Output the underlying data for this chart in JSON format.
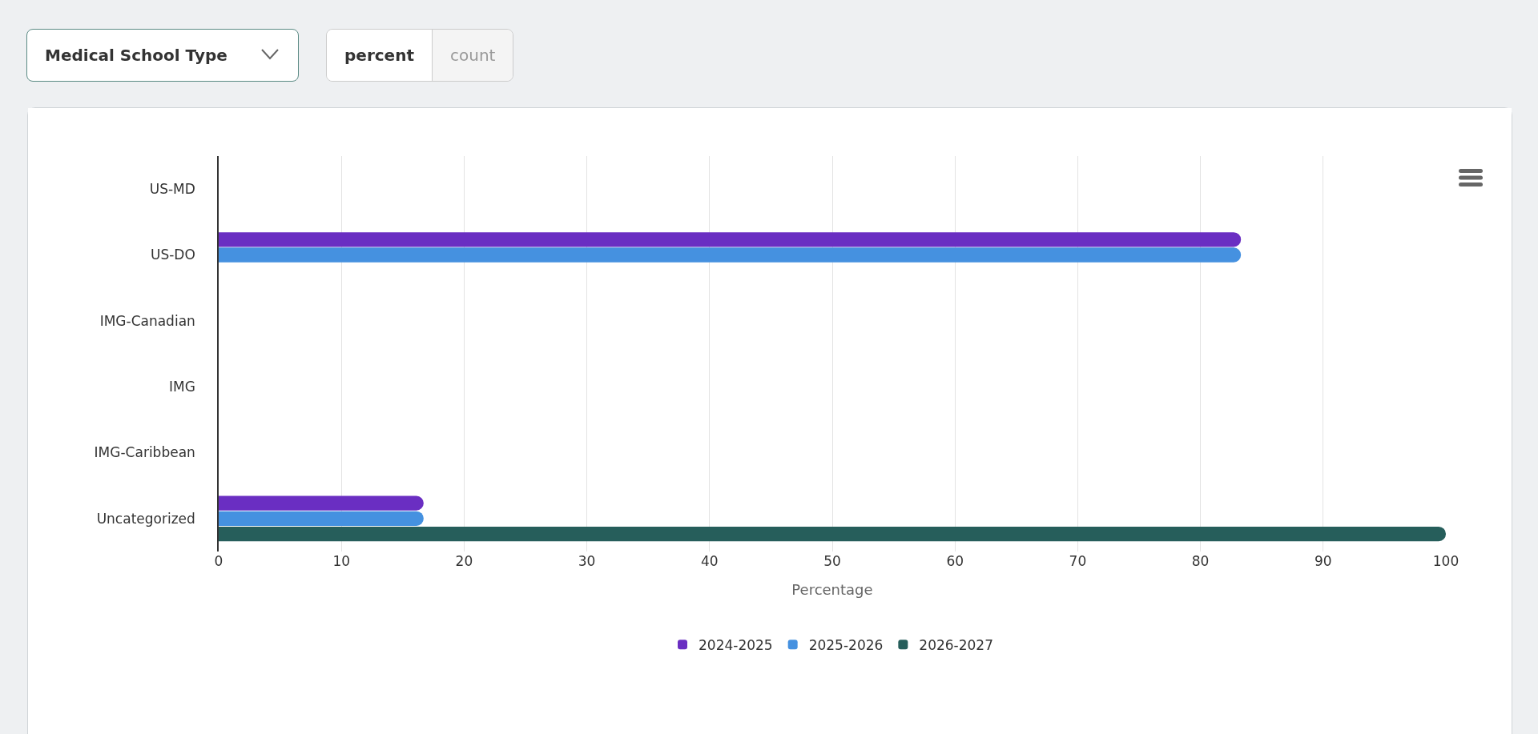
{
  "chart_data": {
    "type": "bar",
    "orientation": "horizontal",
    "xlabel": "Percentage",
    "annotations": [
      "Medical School Type",
      "percent",
      "count"
    ],
    "categories": [
      "US-MD",
      "US-DO",
      "IMG-Canadian",
      "IMG",
      "IMG-Caribbean",
      "Uncategorized"
    ],
    "series": [
      {
        "name": "2024-2025",
        "color": "#6a2ec2",
        "values": [
          0,
          83.3,
          0,
          0,
          0,
          16.7
        ]
      },
      {
        "name": "2025-2026",
        "color": "#4591e0",
        "values": [
          0,
          83.3,
          0,
          0,
          0,
          16.7
        ]
      },
      {
        "name": "2026-2027",
        "color": "#265e5b",
        "values": [
          0,
          0,
          0,
          0,
          0,
          100
        ]
      }
    ],
    "xlim": [
      0,
      100
    ],
    "xticks": [
      0,
      10,
      20,
      30,
      40,
      50,
      60,
      70,
      80,
      90,
      100
    ],
    "grid": "x",
    "legend": "bottom"
  }
}
